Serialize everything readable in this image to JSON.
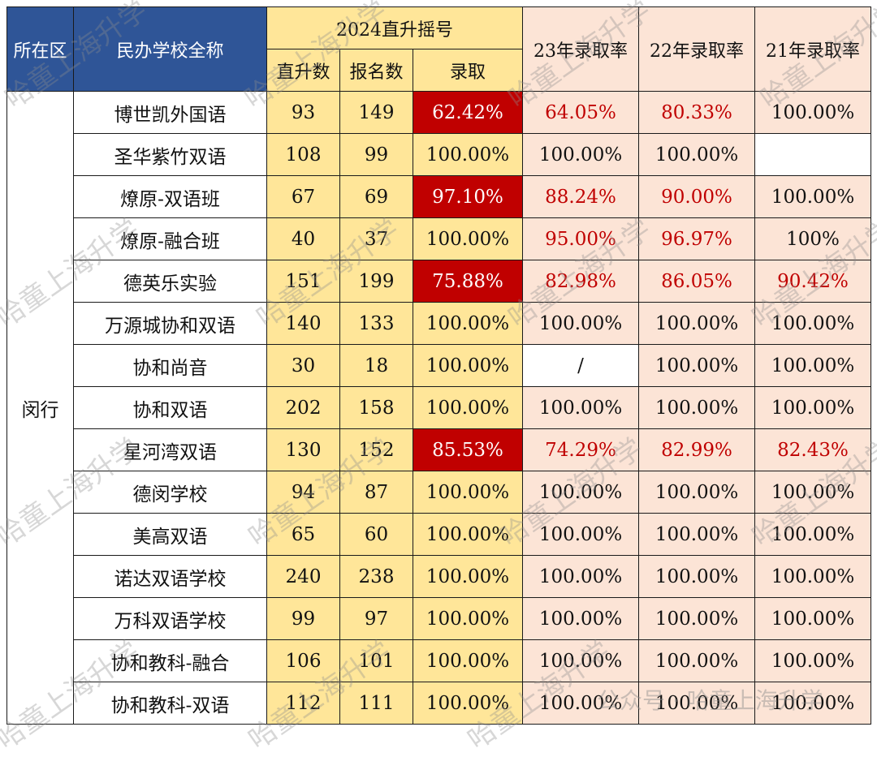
{
  "header": {
    "district": "所在区",
    "school": "民办学校全称",
    "group_2024": "2024直升摇号",
    "direct": "直升数",
    "applicants": "报名数",
    "admission": "录取",
    "rate23": "23年录取率",
    "rate22": "22年录取率",
    "rate21": "21年录取率"
  },
  "district_name": "闵行",
  "rows": [
    {
      "name": "博世凯外国语",
      "direct": "93",
      "applicants": "149",
      "rate24": "62.42%",
      "rate23": "64.05%",
      "rate22": "80.33%",
      "rate21": "100.00%",
      "hl24": true,
      "red23": true,
      "red22": true,
      "red21": false,
      "blank23": false
    },
    {
      "name": "圣华紫竹双语",
      "direct": "108",
      "applicants": "99",
      "rate24": "100.00%",
      "rate23": "100.00%",
      "rate22": "100.00%",
      "rate21": "",
      "hl24": false,
      "red23": false,
      "red22": false,
      "red21": false,
      "blank23": false
    },
    {
      "name": "燎原-双语班",
      "direct": "67",
      "applicants": "69",
      "rate24": "97.10%",
      "rate23": "88.24%",
      "rate22": "90.00%",
      "rate21": "100.00%",
      "hl24": true,
      "red23": true,
      "red22": true,
      "red21": false,
      "blank23": false
    },
    {
      "name": "燎原-融合班",
      "direct": "40",
      "applicants": "37",
      "rate24": "100.00%",
      "rate23": "95.00%",
      "rate22": "96.97%",
      "rate21": "100%",
      "hl24": false,
      "red23": true,
      "red22": true,
      "red21": false,
      "blank23": false
    },
    {
      "name": "德英乐实验",
      "direct": "151",
      "applicants": "199",
      "rate24": "75.88%",
      "rate23": "82.98%",
      "rate22": "86.05%",
      "rate21": "90.42%",
      "hl24": true,
      "red23": true,
      "red22": true,
      "red21": true,
      "blank23": false
    },
    {
      "name": "万源城协和双语",
      "direct": "140",
      "applicants": "133",
      "rate24": "100.00%",
      "rate23": "100.00%",
      "rate22": "100.00%",
      "rate21": "100.00%",
      "hl24": false,
      "red23": false,
      "red22": false,
      "red21": false,
      "blank23": false
    },
    {
      "name": "协和尚音",
      "direct": "30",
      "applicants": "18",
      "rate24": "100.00%",
      "rate23": "/",
      "rate22": "100.00%",
      "rate21": "100.00%",
      "hl24": false,
      "red23": false,
      "red22": false,
      "red21": false,
      "blank23": true
    },
    {
      "name": "协和双语",
      "direct": "202",
      "applicants": "158",
      "rate24": "100.00%",
      "rate23": "100.00%",
      "rate22": "100.00%",
      "rate21": "100.00%",
      "hl24": false,
      "red23": false,
      "red22": false,
      "red21": false,
      "blank23": false
    },
    {
      "name": "星河湾双语",
      "direct": "130",
      "applicants": "152",
      "rate24": "85.53%",
      "rate23": "74.29%",
      "rate22": "82.99%",
      "rate21": "82.43%",
      "hl24": true,
      "red23": true,
      "red22": true,
      "red21": true,
      "blank23": false
    },
    {
      "name": "德闵学校",
      "direct": "94",
      "applicants": "87",
      "rate24": "100.00%",
      "rate23": "100.00%",
      "rate22": "100.00%",
      "rate21": "100.00%",
      "hl24": false,
      "red23": false,
      "red22": false,
      "red21": false,
      "blank23": false
    },
    {
      "name": "美高双语",
      "direct": "65",
      "applicants": "60",
      "rate24": "100.00%",
      "rate23": "100.00%",
      "rate22": "100.00%",
      "rate21": "100.00%",
      "hl24": false,
      "red23": false,
      "red22": false,
      "red21": false,
      "blank23": false
    },
    {
      "name": "诺达双语学校",
      "direct": "240",
      "applicants": "238",
      "rate24": "100.00%",
      "rate23": "100.00%",
      "rate22": "100.00%",
      "rate21": "100.00%",
      "hl24": false,
      "red23": false,
      "red22": false,
      "red21": false,
      "blank23": false
    },
    {
      "name": "万科双语学校",
      "direct": "99",
      "applicants": "97",
      "rate24": "100.00%",
      "rate23": "100.00%",
      "rate22": "100.00%",
      "rate21": "100.00%",
      "hl24": false,
      "red23": false,
      "red22": false,
      "red21": false,
      "blank23": false
    },
    {
      "name": "协和教科-融合",
      "direct": "106",
      "applicants": "101",
      "rate24": "100.00%",
      "rate23": "100.00%",
      "rate22": "100.00%",
      "rate21": "100.00%",
      "hl24": false,
      "red23": false,
      "red22": false,
      "red21": false,
      "blank23": false
    },
    {
      "name": "协和教科-双语",
      "direct": "112",
      "applicants": "111",
      "rate24": "100.00%",
      "rate23": "100.00%",
      "rate22": "100.00%",
      "rate21": "100.00%",
      "hl24": false,
      "red23": false,
      "red22": false,
      "red21": false,
      "blank23": false
    }
  ],
  "watermark": "哈童上海升学",
  "watermark_footer": "公众号 · 哈童上海升学"
}
